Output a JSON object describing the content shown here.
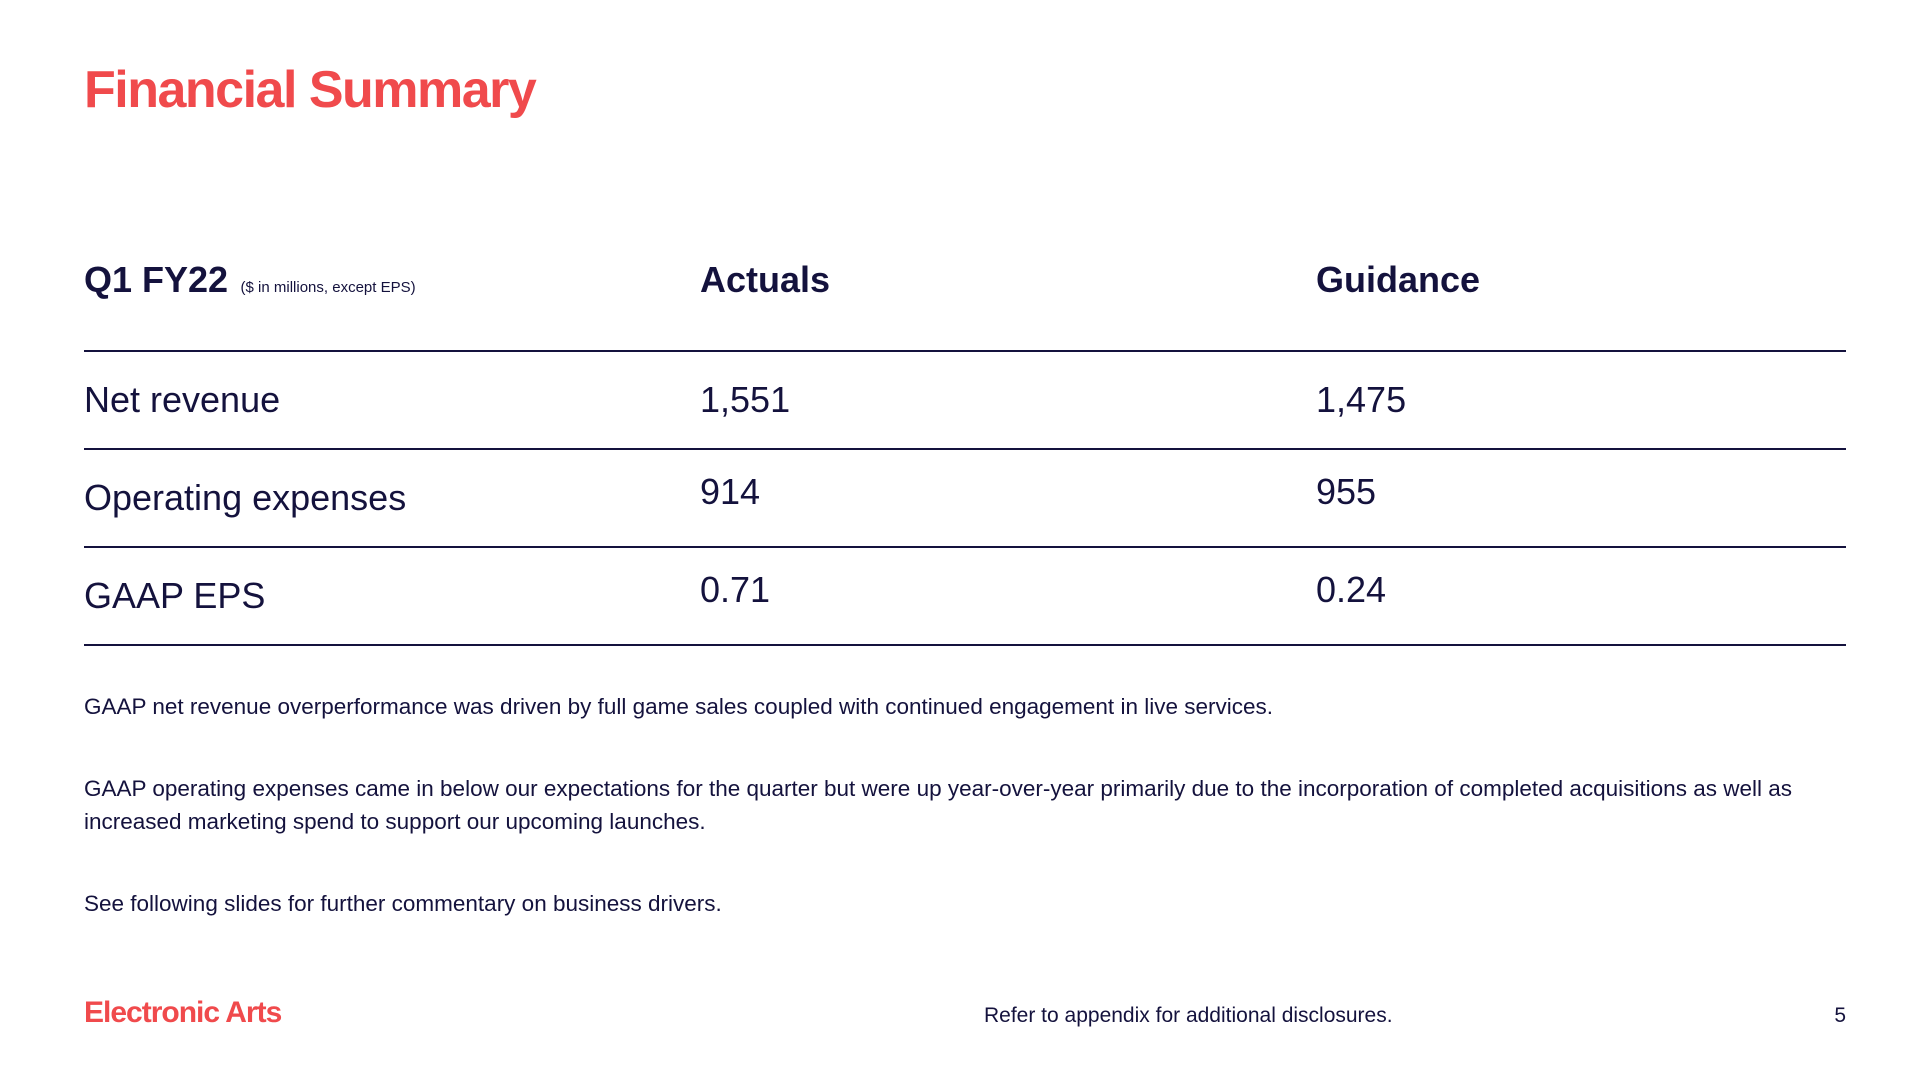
{
  "slide": {
    "title": "Financial Summary"
  },
  "table": {
    "header": {
      "label": "Q1 FY22",
      "note": "($ in millions, except EPS)",
      "actuals": "Actuals",
      "guidance": "Guidance"
    },
    "rows": [
      {
        "label": "Net revenue",
        "actuals": "1,551",
        "guidance": "1,475"
      },
      {
        "label": "Operating expenses",
        "actuals": "914",
        "guidance": "955"
      },
      {
        "label": "GAAP EPS",
        "actuals": "0.71",
        "guidance": "0.24"
      }
    ]
  },
  "notes": [
    "GAAP net revenue overperformance was driven by full game sales coupled with continued engagement in live services.",
    "GAAP operating expenses came in below our expectations for the quarter but were up year-over-year primarily due to the incorporation of completed acquisitions as well as increased marketing spend to support our upcoming launches.",
    "See following slides for further commentary on business drivers."
  ],
  "footer": {
    "logo_text": "Electronic Arts",
    "disclosure": "Refer to appendix for additional disclosures.",
    "page_number": "5"
  },
  "colors": {
    "accent": "#f04a4c",
    "text": "#14123d",
    "background": "#ffffff"
  }
}
